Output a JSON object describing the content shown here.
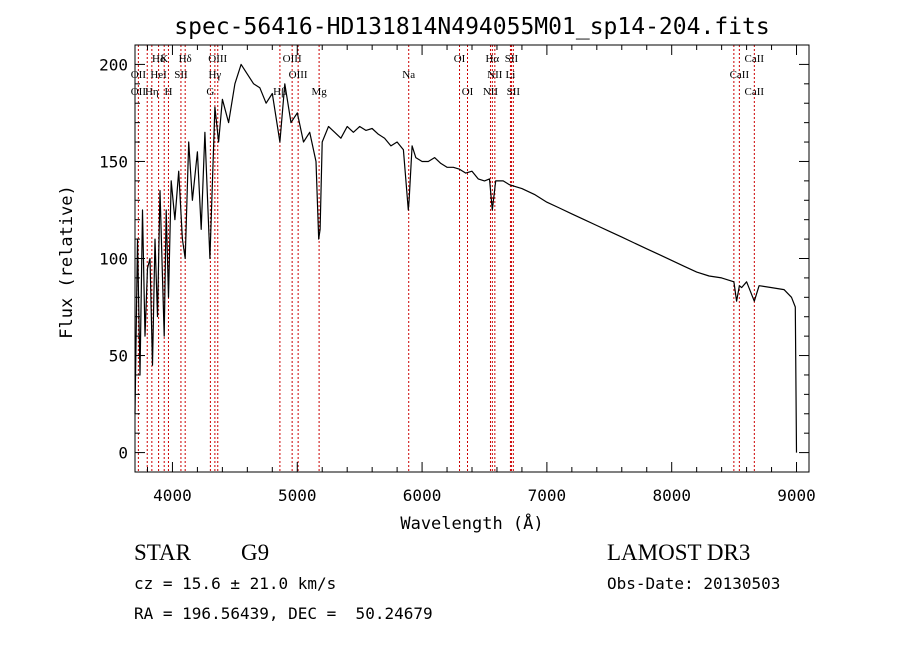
{
  "chart_data": {
    "type": "line",
    "title": "spec-56416-HD131814N494055M01_sp14-204.fits",
    "xlabel": "Wavelength (Å)",
    "ylabel": "Flux (relative)",
    "xlim": [
      3700,
      9100
    ],
    "ylim": [
      -10,
      210
    ],
    "x_ticks": [
      4000,
      5000,
      6000,
      7000,
      8000,
      9000
    ],
    "x_tick_labels": [
      "4000",
      "5000",
      "6000",
      "7000",
      "8000",
      "9000"
    ],
    "y_ticks": [
      0,
      50,
      100,
      150,
      200
    ],
    "y_tick_labels": [
      "0",
      "50",
      "100",
      "150",
      "200"
    ],
    "series": [
      {
        "name": "spectrum",
        "color": "#000000",
        "x": [
          3700,
          3720,
          3740,
          3760,
          3780,
          3800,
          3820,
          3840,
          3860,
          3880,
          3900,
          3920,
          3934,
          3950,
          3968,
          3990,
          4020,
          4050,
          4080,
          4102,
          4130,
          4160,
          4200,
          4230,
          4260,
          4300,
          4340,
          4370,
          4400,
          4450,
          4500,
          4550,
          4600,
          4650,
          4700,
          4750,
          4800,
          4861,
          4900,
          4950,
          5000,
          5050,
          5100,
          5150,
          5172,
          5183,
          5200,
          5250,
          5300,
          5350,
          5400,
          5450,
          5500,
          5550,
          5600,
          5650,
          5700,
          5750,
          5800,
          5850,
          5890,
          5896,
          5920,
          5950,
          6000,
          6050,
          6100,
          6150,
          6200,
          6250,
          6300,
          6350,
          6400,
          6450,
          6500,
          6540,
          6563,
          6590,
          6650,
          6700,
          6750,
          6800,
          6900,
          7000,
          7100,
          7200,
          7300,
          7400,
          7500,
          7600,
          7700,
          7800,
          7900,
          8000,
          8100,
          8200,
          8300,
          8400,
          8498,
          8520,
          8542,
          8560,
          8600,
          8662,
          8700,
          8800,
          8900,
          8960,
          8990,
          9000
        ],
        "y": [
          20,
          110,
          40,
          125,
          60,
          95,
          100,
          45,
          110,
          70,
          135,
          90,
          60,
          125,
          80,
          140,
          120,
          145,
          110,
          100,
          160,
          130,
          155,
          115,
          165,
          100,
          178,
          160,
          182,
          170,
          190,
          200,
          195,
          190,
          188,
          180,
          185,
          160,
          190,
          170,
          175,
          160,
          165,
          150,
          110,
          115,
          160,
          168,
          165,
          162,
          168,
          165,
          168,
          166,
          167,
          164,
          162,
          158,
          160,
          156,
          125,
          130,
          158,
          152,
          150,
          150,
          152,
          149,
          147,
          147,
          146,
          144,
          145,
          141,
          140,
          141,
          125,
          140,
          140,
          138,
          137,
          136,
          133,
          129,
          126,
          123,
          120,
          117,
          114,
          111,
          108,
          105,
          102,
          99,
          96,
          93,
          91,
          90,
          88,
          78,
          86,
          85,
          88,
          78,
          86,
          85,
          84,
          80,
          75,
          0
        ]
      }
    ],
    "line_labels": [
      {
        "name": "Hδ",
        "wavelength": 3889,
        "row": 1
      },
      {
        "name": "K",
        "wavelength": 3934,
        "row": 1
      },
      {
        "name": "Hδ",
        "wavelength": 4102,
        "row": 1
      },
      {
        "name": "OIII",
        "wavelength": 4363,
        "row": 1
      },
      {
        "name": "OIII",
        "wavelength": 4959,
        "row": 1
      },
      {
        "name": "OI",
        "wavelength": 6300,
        "row": 1
      },
      {
        "name": "Hα",
        "wavelength": 6563,
        "row": 1
      },
      {
        "name": "SII",
        "wavelength": 6716,
        "row": 1
      },
      {
        "name": "CaII",
        "wavelength": 8662,
        "row": 1
      },
      {
        "name": "OII",
        "wavelength": 3727,
        "row": 2
      },
      {
        "name": "HeI",
        "wavelength": 3889,
        "row": 2
      },
      {
        "name": "SII",
        "wavelength": 4068,
        "row": 2
      },
      {
        "name": "Hγ",
        "wavelength": 4340,
        "row": 2
      },
      {
        "name": "OIII",
        "wavelength": 5007,
        "row": 2
      },
      {
        "name": "Na",
        "wavelength": 5893,
        "row": 2
      },
      {
        "name": "NII",
        "wavelength": 6583,
        "row": 2
      },
      {
        "name": "Li",
        "wavelength": 6708,
        "row": 2
      },
      {
        "name": "CaII",
        "wavelength": 8542,
        "row": 2
      },
      {
        "name": "OII",
        "wavelength": 3727,
        "row": 3
      },
      {
        "name": "Hη",
        "wavelength": 3835,
        "row": 3
      },
      {
        "name": "H",
        "wavelength": 3968,
        "row": 3
      },
      {
        "name": "G",
        "wavelength": 4304,
        "row": 3
      },
      {
        "name": "Hβ",
        "wavelength": 4861,
        "row": 3
      },
      {
        "name": "Mg",
        "wavelength": 5175,
        "row": 3
      },
      {
        "name": "OI",
        "wavelength": 6364,
        "row": 3
      },
      {
        "name": "NII",
        "wavelength": 6548,
        "row": 3
      },
      {
        "name": "SII",
        "wavelength": 6731,
        "row": 3
      },
      {
        "name": "CaII",
        "wavelength": 8662,
        "row": 3
      }
    ],
    "line_marker_wavelengths": [
      3727,
      3798,
      3835,
      3889,
      3934,
      3968,
      4068,
      4102,
      4304,
      4340,
      4363,
      4861,
      4959,
      5007,
      5175,
      5893,
      6300,
      6364,
      6548,
      6563,
      6583,
      6708,
      6716,
      6731,
      8498,
      8542,
      8662
    ],
    "line_marker_color": "#cc0000",
    "info": {
      "object_class": "STAR",
      "subclass": "G9",
      "survey": "LAMOST DR3",
      "cz": "cz = 15.6 ± 21.0 km/s",
      "obs_date": "Obs-Date: 20130503",
      "coords": "RA = 196.56439, DEC =  50.24679"
    }
  }
}
